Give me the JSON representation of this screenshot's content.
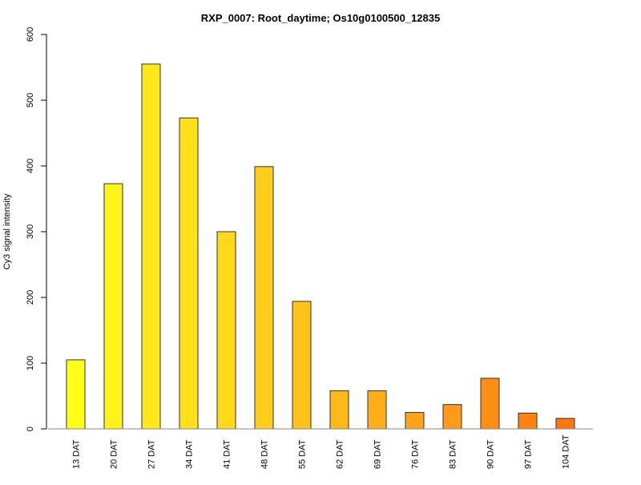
{
  "chart_data": {
    "type": "bar",
    "title": "RXP_0007: Root_daytime; Os10g0100500_12835",
    "xlabel": "",
    "ylabel": "Cy3 signal intensity",
    "ylim": [
      0,
      600
    ],
    "yticks": [
      0,
      100,
      200,
      300,
      400,
      500,
      600
    ],
    "grid": false,
    "categories": [
      "13 DAT",
      "20 DAT",
      "27 DAT",
      "34 DAT",
      "41 DAT",
      "48 DAT",
      "55 DAT",
      "62 DAT",
      "69 DAT",
      "76 DAT",
      "83 DAT",
      "90 DAT",
      "97 DAT",
      "104 DAT"
    ],
    "values": [
      105,
      373,
      555,
      473,
      300,
      399,
      194,
      58,
      58,
      25,
      37,
      77,
      24,
      16
    ],
    "colors": [
      "#FFFF1A",
      "#FFF31A",
      "#FFE81A",
      "#FFE01A",
      "#FFD81A",
      "#FFCE1A",
      "#FFC21A",
      "#FFB81A",
      "#FFAE1A",
      "#FFA31A",
      "#FF9A1A",
      "#FF8F14",
      "#FF8310",
      "#FF760E"
    ]
  }
}
